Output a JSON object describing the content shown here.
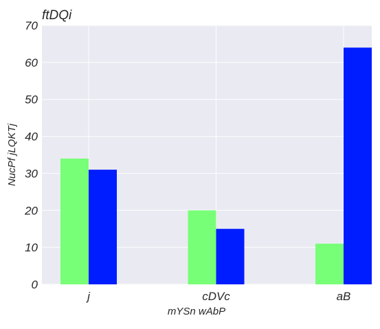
{
  "chart_data": {
    "type": "bar",
    "title": "ftDQi",
    "xlabel": "mYSn wAbP",
    "ylabel": "NucPf jLQKTj",
    "categories": [
      "j",
      "cDVc",
      "aB"
    ],
    "series": [
      {
        "values": [
          34,
          20,
          11
        ],
        "color": "#77ff77"
      },
      {
        "values": [
          31,
          15,
          64
        ],
        "color": "#001dff"
      }
    ],
    "ylim": [
      0,
      70
    ],
    "yticks": [
      0,
      10,
      20,
      30,
      40,
      50,
      60,
      70
    ],
    "grid": true,
    "background": "#eaeaf2",
    "gridColor": "#ffffff"
  }
}
